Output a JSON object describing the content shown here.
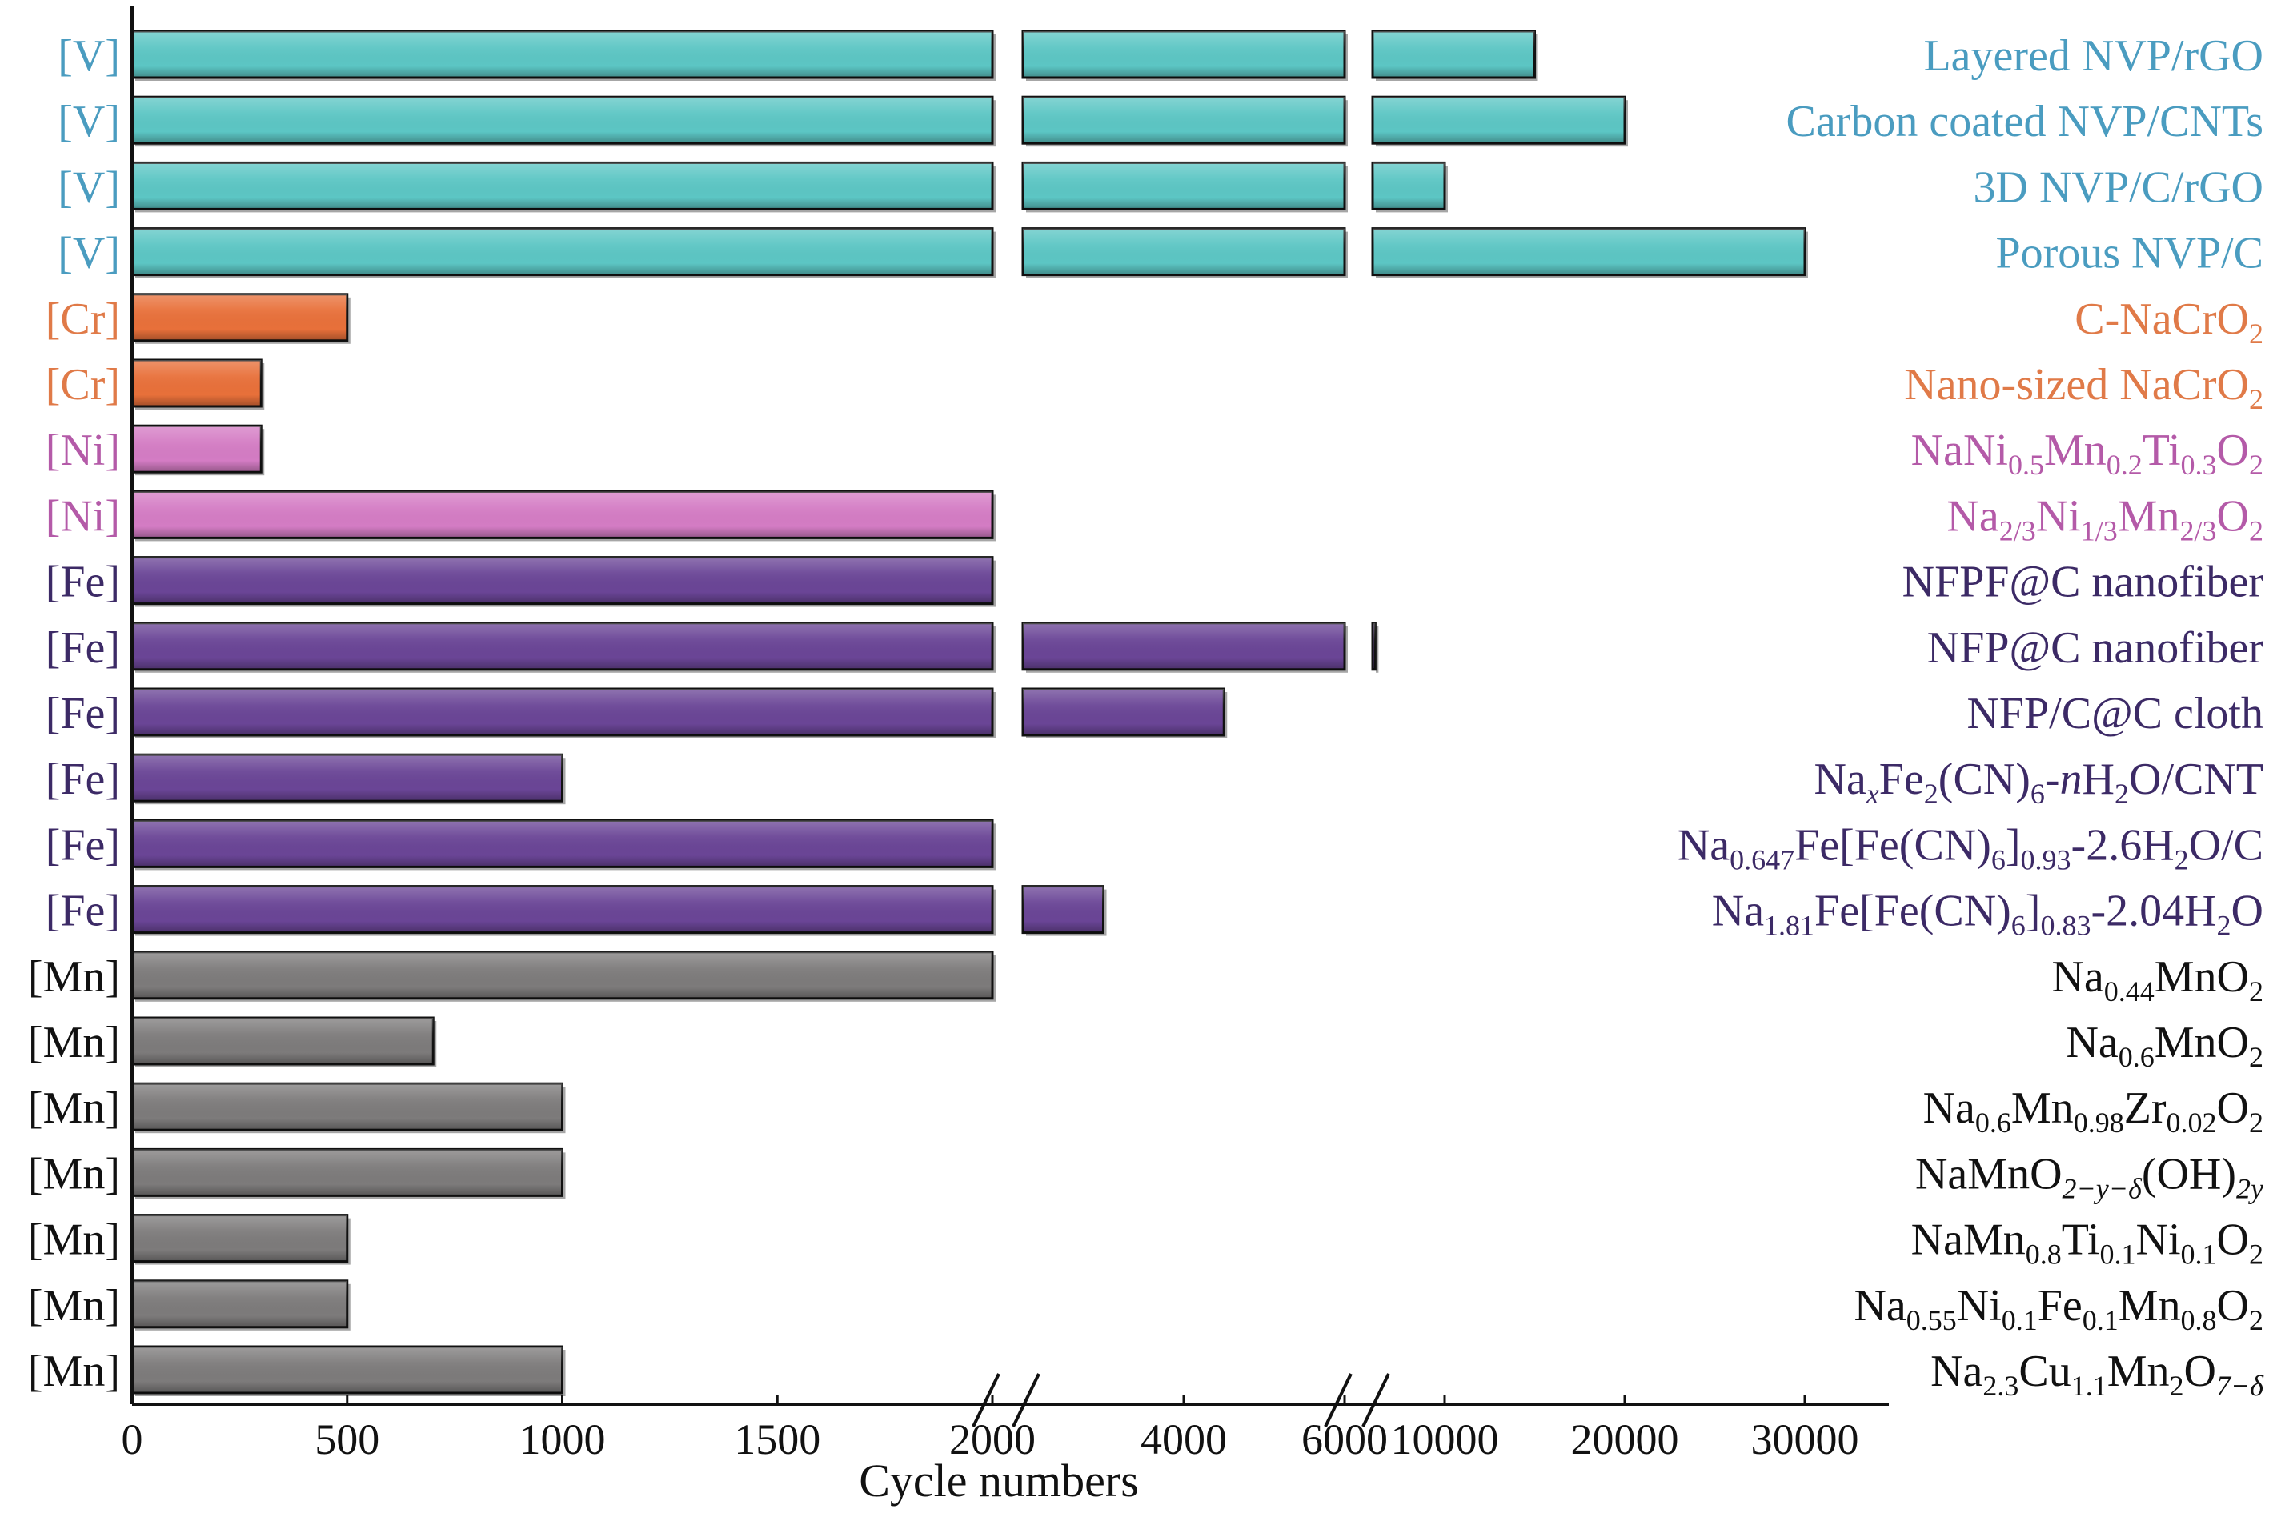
{
  "chart_data": {
    "type": "bar",
    "orientation": "horizontal",
    "xlabel": "Cycle numbers",
    "ylabel": "",
    "title": "",
    "x_axis_breaks": true,
    "x_segments": [
      {
        "range": [
          0,
          2000
        ],
        "ticks": [
          0,
          500,
          1000,
          1500,
          2000
        ]
      },
      {
        "range": [
          2000,
          6000
        ],
        "ticks": [
          4000,
          6000
        ]
      },
      {
        "range": [
          6000,
          30000
        ],
        "ticks": [
          10000,
          20000,
          30000
        ]
      }
    ],
    "xticks": [
      "0",
      "500",
      "1000",
      "1500",
      "2000",
      "4000",
      "6000",
      "10000",
      "20000",
      "30000"
    ],
    "grid": false,
    "colors": {
      "V": "#5cc6c4",
      "Cr": "#e8703a",
      "Ni": "#d47cc4",
      "Fe": "#6a4596",
      "Mn": "#7d7b7b"
    },
    "label_colors": {
      "V": "#4a9cc0",
      "Cr": "#e07a48",
      "Ni": "#b45aa8",
      "Fe": "#3c2a66",
      "Mn": "#111111"
    },
    "bars": [
      {
        "group": "V",
        "tag": "[V]",
        "value": 15000,
        "label": [
          [
            "Layered NVP/rGO",
            ""
          ]
        ]
      },
      {
        "group": "V",
        "tag": "[V]",
        "value": 20000,
        "label": [
          [
            "Carbon coated NVP/CNTs",
            ""
          ]
        ]
      },
      {
        "group": "V",
        "tag": "[V]",
        "value": 10000,
        "label": [
          [
            "3D NVP/C/rGO",
            ""
          ]
        ]
      },
      {
        "group": "V",
        "tag": "[V]",
        "value": 30000,
        "label": [
          [
            "Porous NVP/C",
            ""
          ]
        ]
      },
      {
        "group": "Cr",
        "tag": "[Cr]",
        "value": 500,
        "label": [
          [
            "C-NaCrO",
            ""
          ],
          [
            "2",
            "sub"
          ]
        ]
      },
      {
        "group": "Cr",
        "tag": "[Cr]",
        "value": 300,
        "label": [
          [
            "Nano-sized NaCrO",
            ""
          ],
          [
            "2",
            "sub"
          ]
        ]
      },
      {
        "group": "Ni",
        "tag": "[Ni]",
        "value": 300,
        "label": [
          [
            "NaNi",
            ""
          ],
          [
            "0.5",
            "sub"
          ],
          [
            "Mn",
            ""
          ],
          [
            "0.2",
            "sub"
          ],
          [
            "Ti",
            ""
          ],
          [
            "0.3",
            "sub"
          ],
          [
            "O",
            ""
          ],
          [
            "2",
            "sub"
          ]
        ]
      },
      {
        "group": "Ni",
        "tag": "[Ni]",
        "value": 2000,
        "label": [
          [
            "Na",
            ""
          ],
          [
            "2/3",
            "sub"
          ],
          [
            "Ni",
            ""
          ],
          [
            "1/3",
            "sub"
          ],
          [
            "Mn",
            ""
          ],
          [
            "2/3",
            "sub"
          ],
          [
            "O",
            ""
          ],
          [
            "2",
            "sub"
          ]
        ]
      },
      {
        "group": "Fe",
        "tag": "[Fe]",
        "value": 2000,
        "label": [
          [
            "NFPF@C nanofiber",
            ""
          ]
        ]
      },
      {
        "group": "Fe",
        "tag": "[Fe]",
        "value": 6150,
        "label": [
          [
            "NFP@C nanofiber",
            ""
          ]
        ]
      },
      {
        "group": "Fe",
        "tag": "[Fe]",
        "value": 4500,
        "label": [
          [
            "NFP/C@C cloth",
            ""
          ]
        ]
      },
      {
        "group": "Fe",
        "tag": "[Fe]",
        "value": 1000,
        "label": [
          [
            "Na",
            ""
          ],
          [
            "x",
            "subi"
          ],
          [
            "Fe",
            ""
          ],
          [
            "2",
            "sub"
          ],
          [
            "(CN)",
            ""
          ],
          [
            "6",
            "sub"
          ],
          [
            "-",
            ""
          ],
          [
            "n",
            "i"
          ],
          [
            "H",
            ""
          ],
          [
            "2",
            "sub"
          ],
          [
            "O/CNT",
            ""
          ]
        ]
      },
      {
        "group": "Fe",
        "tag": "[Fe]",
        "value": 2000,
        "label": [
          [
            "Na",
            ""
          ],
          [
            "0.647",
            "sub"
          ],
          [
            "Fe[Fe(CN)",
            ""
          ],
          [
            "6",
            "sub"
          ],
          [
            "]",
            ""
          ],
          [
            "0.93",
            "sub"
          ],
          [
            "-2.6H",
            ""
          ],
          [
            "2",
            "sub"
          ],
          [
            "O/C",
            ""
          ]
        ]
      },
      {
        "group": "Fe",
        "tag": "[Fe]",
        "value": 3000,
        "label": [
          [
            "Na",
            ""
          ],
          [
            "1.81",
            "sub"
          ],
          [
            "Fe[Fe(CN)",
            ""
          ],
          [
            "6",
            "sub"
          ],
          [
            "]",
            ""
          ],
          [
            "0.83",
            "sub"
          ],
          [
            "-2.04H",
            ""
          ],
          [
            "2",
            "sub"
          ],
          [
            "O",
            ""
          ]
        ]
      },
      {
        "group": "Mn",
        "tag": "[Mn]",
        "value": 2000,
        "label": [
          [
            "Na",
            ""
          ],
          [
            "0.44",
            "sub"
          ],
          [
            "MnO",
            ""
          ],
          [
            "2",
            "sub"
          ]
        ]
      },
      {
        "group": "Mn",
        "tag": "[Mn]",
        "value": 700,
        "label": [
          [
            "Na",
            ""
          ],
          [
            "0.6",
            "sub"
          ],
          [
            "MnO",
            ""
          ],
          [
            "2",
            "sub"
          ]
        ]
      },
      {
        "group": "Mn",
        "tag": "[Mn]",
        "value": 1000,
        "label": [
          [
            "Na",
            ""
          ],
          [
            "0.6",
            "sub"
          ],
          [
            "Mn",
            ""
          ],
          [
            "0.98",
            "sub"
          ],
          [
            "Zr",
            ""
          ],
          [
            "0.02",
            "sub"
          ],
          [
            "O",
            ""
          ],
          [
            "2",
            "sub"
          ]
        ]
      },
      {
        "group": "Mn",
        "tag": "[Mn]",
        "value": 1000,
        "label": [
          [
            "NaMnO",
            ""
          ],
          [
            "2−y−δ",
            "subi"
          ],
          [
            "(OH)",
            ""
          ],
          [
            "2y",
            "subi"
          ]
        ]
      },
      {
        "group": "Mn",
        "tag": "[Mn]",
        "value": 500,
        "label": [
          [
            "NaMn",
            ""
          ],
          [
            "0.8",
            "sub"
          ],
          [
            "Ti",
            ""
          ],
          [
            "0.1",
            "sub"
          ],
          [
            "Ni",
            ""
          ],
          [
            "0.1",
            "sub"
          ],
          [
            "O",
            ""
          ],
          [
            "2",
            "sub"
          ]
        ]
      },
      {
        "group": "Mn",
        "tag": "[Mn]",
        "value": 500,
        "label": [
          [
            "Na",
            ""
          ],
          [
            "0.55",
            "sub"
          ],
          [
            "Ni",
            ""
          ],
          [
            "0.1",
            "sub"
          ],
          [
            "Fe",
            ""
          ],
          [
            "0.1",
            "sub"
          ],
          [
            "Mn",
            ""
          ],
          [
            "0.8",
            "sub"
          ],
          [
            "O",
            ""
          ],
          [
            "2",
            "sub"
          ]
        ]
      },
      {
        "group": "Mn",
        "tag": "[Mn]",
        "value": 1000,
        "label": [
          [
            "Na",
            ""
          ],
          [
            "2.3",
            "sub"
          ],
          [
            "Cu",
            ""
          ],
          [
            "1.1",
            "sub"
          ],
          [
            "Mn",
            ""
          ],
          [
            "2",
            "sub"
          ],
          [
            "O",
            ""
          ],
          [
            "7−δ",
            "subi"
          ]
        ]
      }
    ]
  }
}
